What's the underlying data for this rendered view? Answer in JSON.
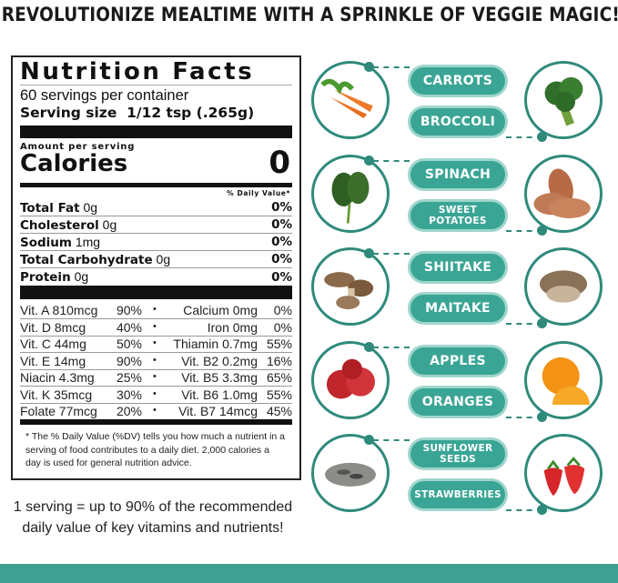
{
  "headline": "REVOLUTIONIZE MEALTIME WITH A SPRINKLE OF VEGGIE MAGIC!",
  "label": {
    "title": "Nutrition Facts",
    "servings": "60 servings per container",
    "serving_size": "Serving size  1/12 tsp (.265g)",
    "amount_per_serving": "Amount per serving",
    "calories_label": "Calories",
    "calories_value": "0",
    "dv_header": "% Daily Value*",
    "nutrients": [
      {
        "name": "Total Fat",
        "amount": "0g",
        "dv": "0%"
      },
      {
        "name": "Cholesterol",
        "amount": "0g",
        "dv": "0%"
      },
      {
        "name": "Sodium",
        "amount": "1mg",
        "dv": "0%"
      },
      {
        "name": "Total Carbohydrate",
        "amount": "0g",
        "dv": "0%"
      },
      {
        "name": "Protein",
        "amount": "0g",
        "dv": "0%"
      }
    ],
    "vitamins": [
      {
        "left": "Vit. A 810mcg",
        "left_dv": "90%",
        "right": "Calcium 0mg",
        "right_dv": "0%"
      },
      {
        "left": "Vit. D 8mcg",
        "left_dv": "40%",
        "right": "Iron 0mg",
        "right_dv": "0%"
      },
      {
        "left": "Vit. C 44mg",
        "left_dv": "50%",
        "right": "Thiamin 0.7mg",
        "right_dv": "55%"
      },
      {
        "left": "Vit. E 14mg",
        "left_dv": "90%",
        "right": "Vit. B2 0.2mg",
        "right_dv": "16%"
      },
      {
        "left": "Niacin 4.3mg",
        "left_dv": "25%",
        "right": "Vit. B5 3.3mg",
        "right_dv": "65%"
      },
      {
        "left": "Vit. K 35mcg",
        "left_dv": "30%",
        "right": "Vit. B6 1.0mg",
        "right_dv": "55%"
      },
      {
        "left": "Folate 77mcg",
        "left_dv": "20%",
        "right": "Vit. B7 14mcg",
        "right_dv": "45%"
      }
    ],
    "bullet": "•",
    "footnote": "* The % Daily Value (%DV) tells you how much a nutrient in a serving of food contributes to a daily diet. 2,000 calories a day is used for general nutrition advice."
  },
  "bottom_note": "1 serving = up to 90% of the recommended daily value of key vitamins and nutrients!",
  "colors": {
    "teal": "#3aa595",
    "teal_light": "#9fd6cc",
    "teal_dark": "#2f8a7c"
  },
  "ingredients": [
    {
      "left": "CARROTS",
      "right": "BROCCOLI",
      "left_image": "carrots",
      "right_image": "broccoli"
    },
    {
      "left": "SPINACH",
      "right": "SWEET POTATOES",
      "left_image": "spinach",
      "right_image": "sweet-potatoes"
    },
    {
      "left": "SHIITAKE",
      "right": "MAITAKE",
      "left_image": "shiitake",
      "right_image": "maitake"
    },
    {
      "left": "APPLES",
      "right": "ORANGES",
      "left_image": "apples",
      "right_image": "oranges"
    },
    {
      "left": "SUNFLOWER SEEDS",
      "right": "STRAWBERRIES",
      "left_image": "sunflower-seeds",
      "right_image": "strawberries"
    }
  ]
}
